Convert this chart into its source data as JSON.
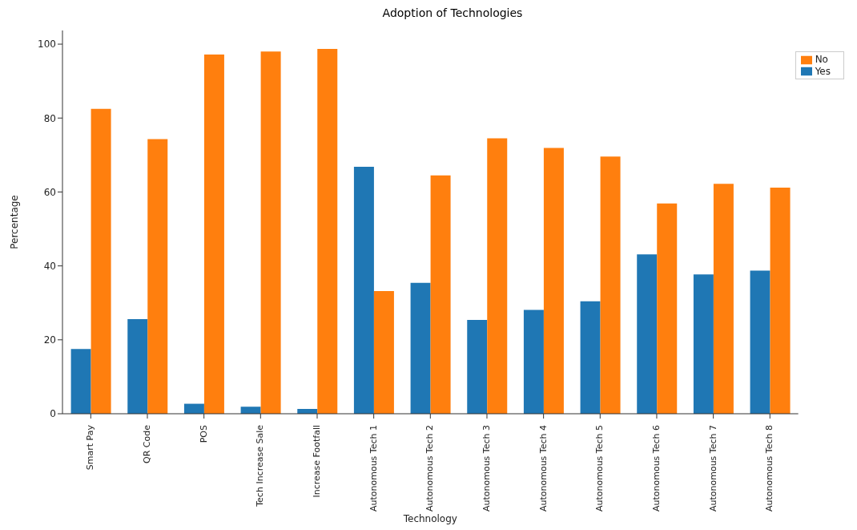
{
  "chart_data": {
    "type": "bar",
    "title": "Adoption of Technologies",
    "xlabel": "Technology",
    "ylabel": "Percentage",
    "categories": [
      "Smart Pay",
      "QR Code",
      "POS",
      "Tech Increase Sale",
      "Increase Footfall",
      "Autonomous Tech 1",
      "Autonomous Tech 2",
      "Autonomous Tech 3",
      "Autonomous Tech 4",
      "Autonomous Tech 5",
      "Autonomous Tech 6",
      "Autonomous Tech 7",
      "Autonomous Tech 8"
    ],
    "series": [
      {
        "name": "Yes",
        "color": "#1f77b4",
        "values": [
          17.5,
          25.6,
          2.7,
          1.9,
          1.3,
          66.8,
          35.4,
          25.4,
          28.1,
          30.4,
          43.1,
          37.7,
          38.7
        ]
      },
      {
        "name": "No",
        "color": "#ff7f0e",
        "values": [
          82.5,
          74.3,
          97.2,
          98.0,
          98.7,
          33.2,
          64.5,
          74.5,
          71.9,
          69.6,
          56.9,
          62.2,
          61.2
        ]
      }
    ],
    "ylim": [
      0,
      103.7
    ],
    "yticks": [
      0,
      20,
      40,
      60,
      80,
      100
    ],
    "grid": false,
    "legend": "top right"
  }
}
